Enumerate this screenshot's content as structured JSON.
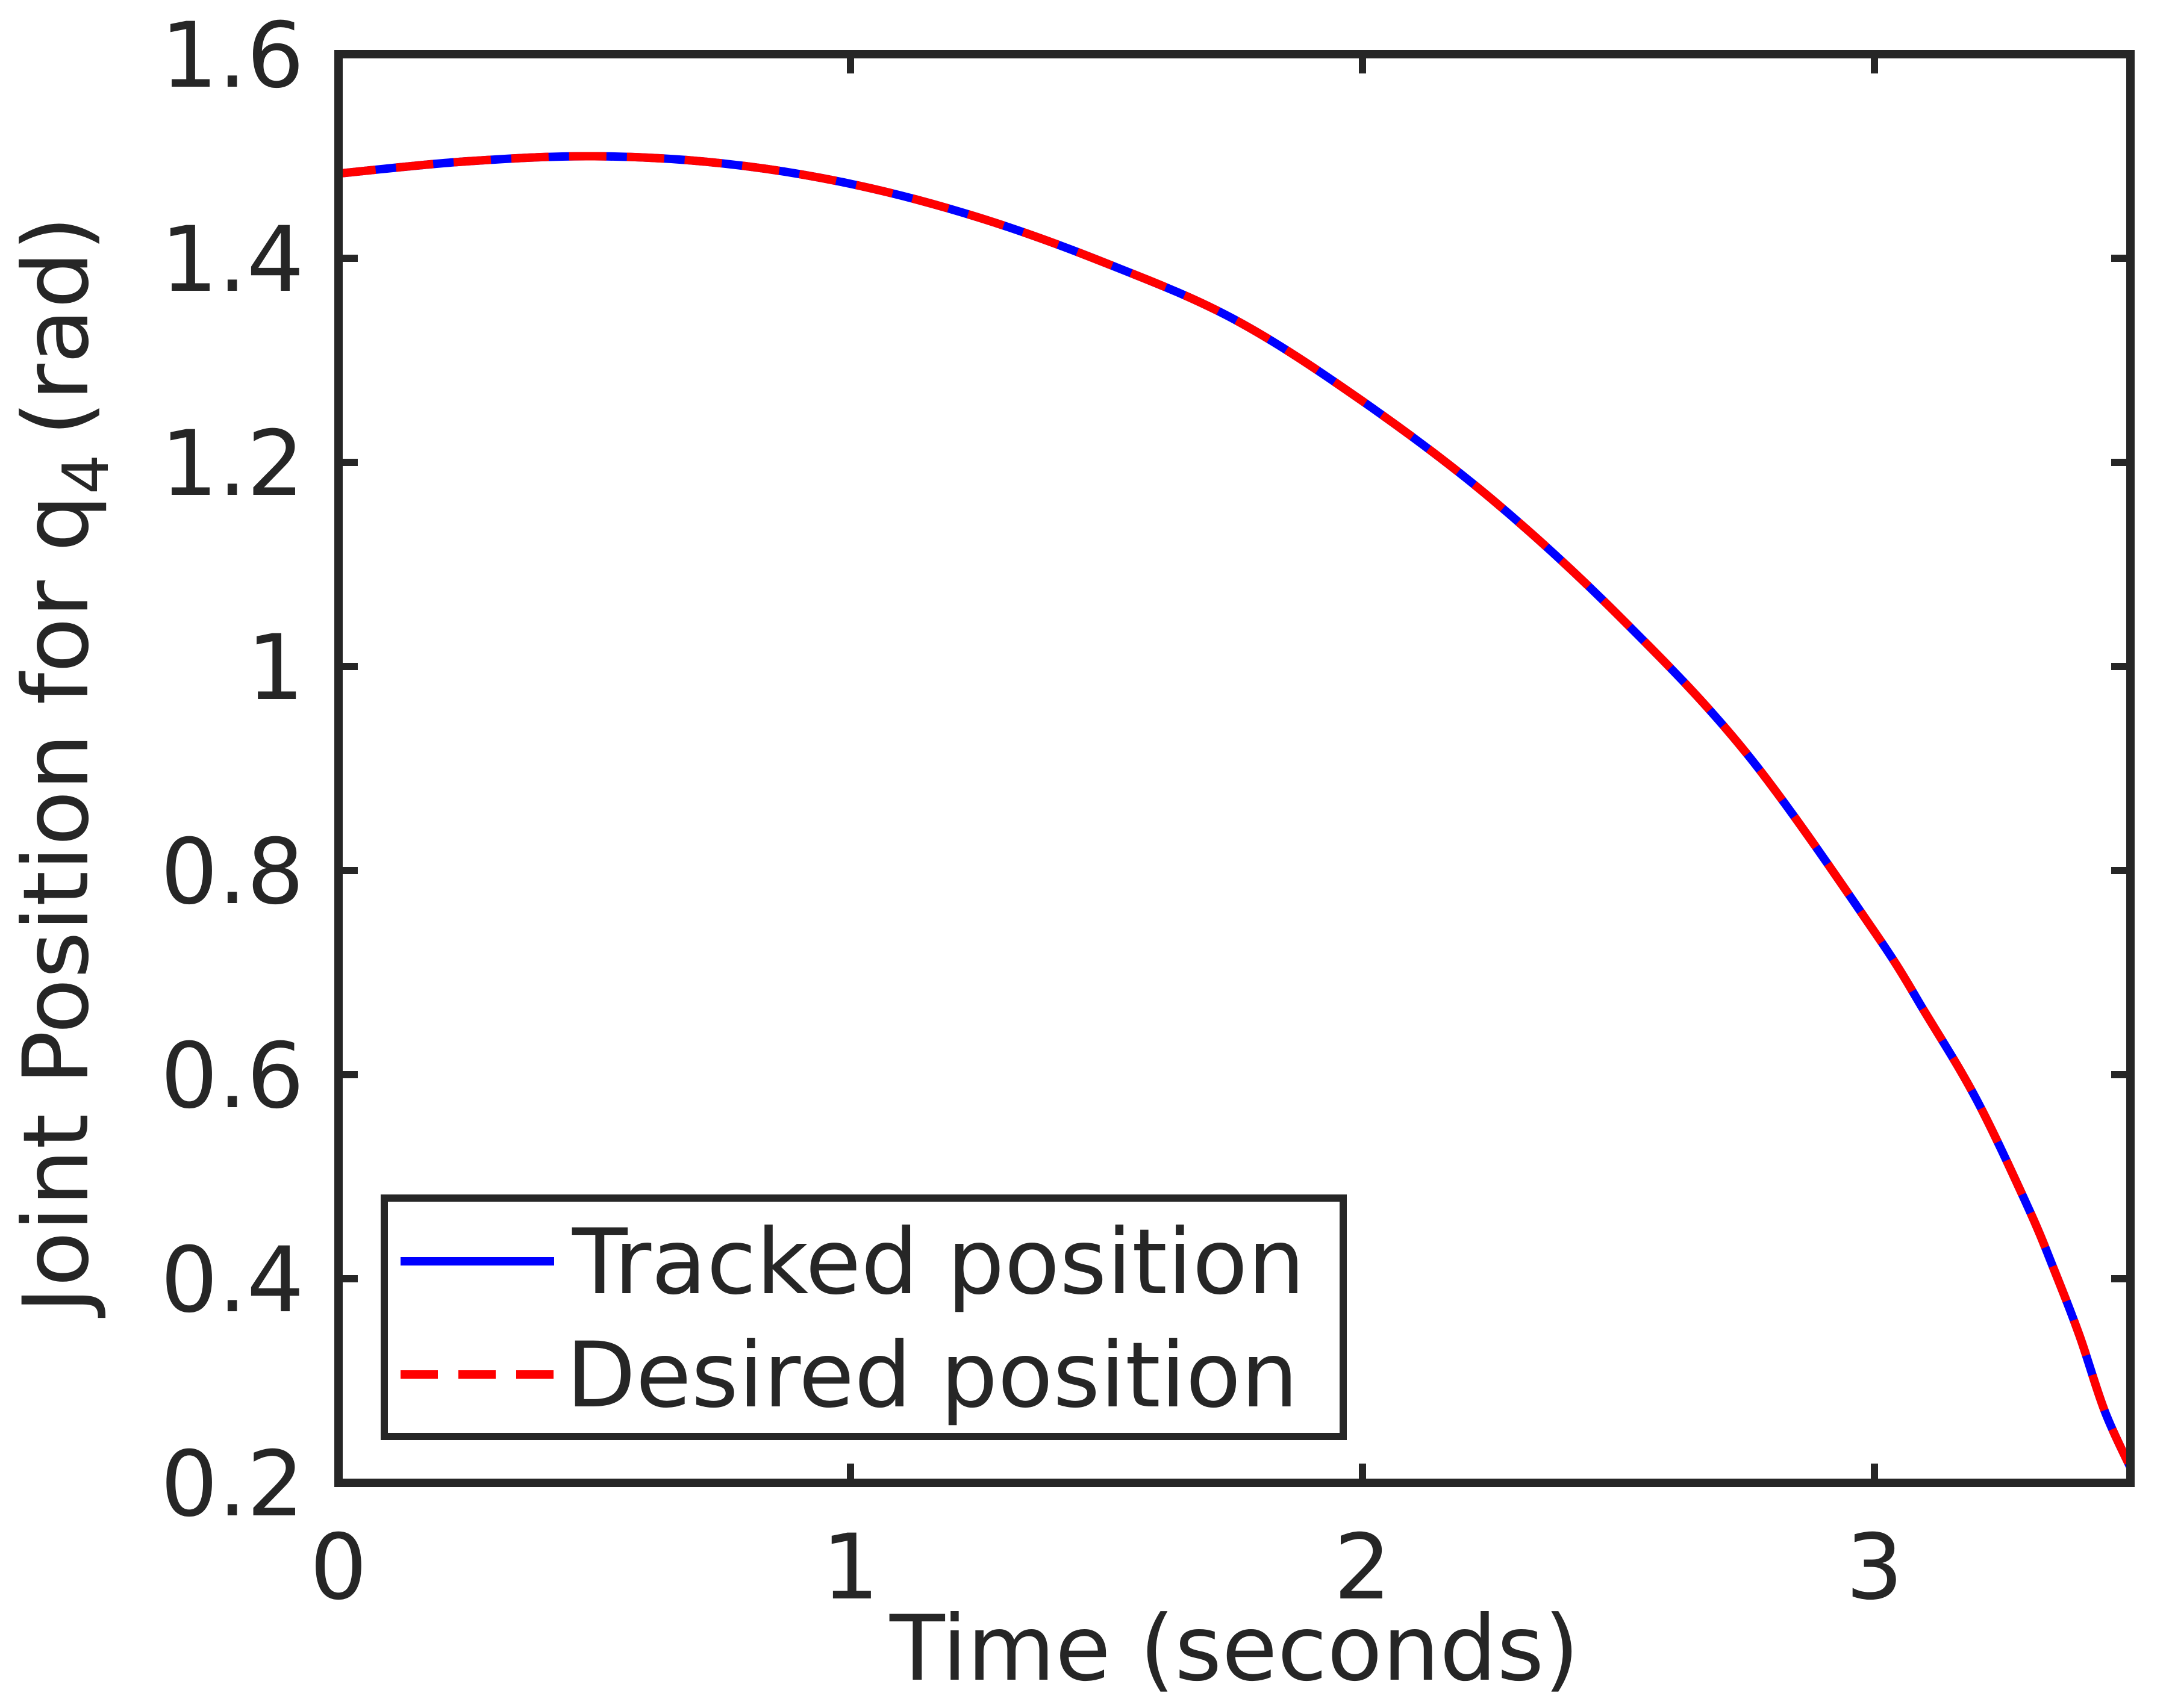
{
  "chart_data": {
    "type": "line",
    "title": "",
    "xlabel": "Time (seconds)",
    "ylabel_main": "Joint Position for q",
    "ylabel_sub": "4",
    "ylabel_unit": "(rad)",
    "xlim": [
      0,
      3.5
    ],
    "ylim": [
      0.2,
      1.6
    ],
    "xticks": [
      0,
      1,
      2,
      3
    ],
    "xtick_labels": [
      "0",
      "1",
      "2",
      "3"
    ],
    "yticks": [
      0.2,
      0.4,
      0.6,
      0.8,
      1.0,
      1.2,
      1.4,
      1.6
    ],
    "ytick_labels": [
      "0.2",
      "0.4",
      "0.6",
      "0.8",
      "1",
      "1.2",
      "1.4",
      "1.6"
    ],
    "grid": false,
    "legend_position": "bottom-left",
    "x": [
      0,
      0.25,
      0.5,
      0.75,
      1.0,
      1.25,
      1.5,
      1.75,
      2.0,
      2.25,
      2.5,
      2.75,
      3.0,
      3.1,
      3.2,
      3.3,
      3.35,
      3.4,
      3.45,
      3.5
    ],
    "series": [
      {
        "name": "Tracked position",
        "color": "#0000ff",
        "style": "solid",
        "values": [
          1.483,
          1.495,
          1.5,
          1.493,
          1.473,
          1.44,
          1.395,
          1.34,
          1.26,
          1.165,
          1.05,
          0.915,
          0.74,
          0.66,
          0.575,
          0.47,
          0.41,
          0.345,
          0.27,
          0.215
        ]
      },
      {
        "name": "Desired position",
        "color": "#ff0000",
        "style": "dashed",
        "values": [
          1.483,
          1.495,
          1.5,
          1.493,
          1.473,
          1.44,
          1.395,
          1.34,
          1.26,
          1.165,
          1.05,
          0.915,
          0.74,
          0.66,
          0.575,
          0.47,
          0.41,
          0.345,
          0.27,
          0.215
        ]
      }
    ]
  }
}
